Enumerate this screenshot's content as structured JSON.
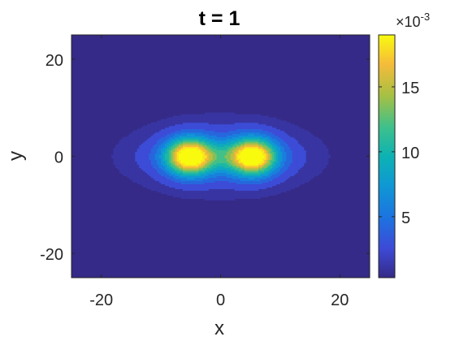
{
  "chart_data": {
    "type": "heatmap",
    "title": "t = 1",
    "xlabel": "x",
    "ylabel": "y",
    "xlim": [
      -25,
      25
    ],
    "ylim": [
      -25,
      25
    ],
    "xticks": [
      -20,
      0,
      20
    ],
    "yticks": [
      -20,
      0,
      20
    ],
    "xtick_labels": [
      "-20",
      "0",
      "20"
    ],
    "ytick_labels": [
      "-20",
      "0",
      "20"
    ],
    "colormap": "parula",
    "colorbar": {
      "range": [
        0.0003,
        0.019
      ],
      "ticks": [
        5,
        10,
        15
      ],
      "tick_labels": [
        "5",
        "10",
        "15"
      ],
      "multiplier_base": "×10",
      "multiplier_exponent": "-3"
    },
    "peaks": [
      {
        "x": -5.3,
        "y": 0,
        "value": 0.019
      },
      {
        "x": 5.5,
        "y": 0,
        "value": 0.019
      }
    ],
    "center_value": 0.0085,
    "grid": false
  }
}
